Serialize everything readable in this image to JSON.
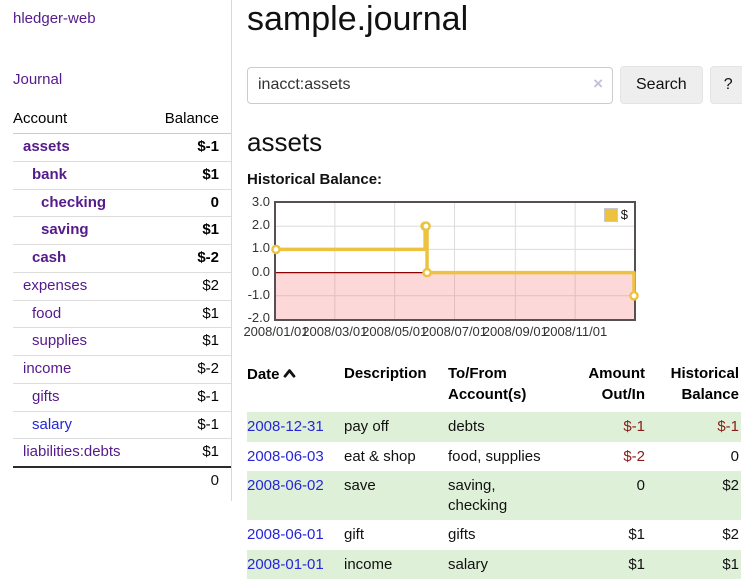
{
  "brand": "hledger-web",
  "sidebar": {
    "journal_link": "Journal",
    "accounts_table": {
      "headers": {
        "account": "Account",
        "balance": "Balance"
      },
      "rows": [
        {
          "name": "assets",
          "depth": 1,
          "balance": "$-1",
          "bold": true,
          "balance_style": "neg"
        },
        {
          "name": "bank",
          "depth": 2,
          "balance": "$1",
          "bold": true,
          "balance_style": ""
        },
        {
          "name": "checking",
          "depth": 3,
          "balance": "0",
          "bold": true,
          "balance_style": ""
        },
        {
          "name": "saving",
          "depth": 3,
          "balance": "$1",
          "bold": true,
          "balance_style": ""
        },
        {
          "name": "cash",
          "depth": 2,
          "balance": "$-2",
          "bold": true,
          "balance_style": "neg"
        },
        {
          "name": "expenses",
          "depth": 1,
          "balance": "$2",
          "bold": false,
          "balance_style": ""
        },
        {
          "name": "food",
          "depth": 2,
          "balance": "$1",
          "bold": false,
          "balance_style": ""
        },
        {
          "name": "supplies",
          "depth": 2,
          "balance": "$1",
          "bold": false,
          "balance_style": ""
        },
        {
          "name": "income",
          "depth": 1,
          "balance": "$-2",
          "bold": false,
          "balance_style": "neg-light"
        },
        {
          "name": "gifts",
          "depth": 2,
          "balance": "$-1",
          "bold": false,
          "balance_style": "neg-light"
        },
        {
          "name": "salary",
          "depth": 2,
          "balance": "$-1",
          "bold": false,
          "balance_style": "neg-light",
          "link_style": "blue"
        },
        {
          "name": "liabilities:debts",
          "depth": 1,
          "balance": "$1",
          "bold": false,
          "balance_style": ""
        }
      ],
      "total": "0"
    }
  },
  "header": {
    "title": "sample.journal"
  },
  "search": {
    "value": "inacct:assets",
    "clear_icon": "×",
    "button_label": "Search",
    "help_label": "?"
  },
  "account_page": {
    "title": "assets",
    "chart_label": "Historical Balance:"
  },
  "chart_data": {
    "type": "line",
    "step": true,
    "title": "Historical Balance:",
    "series": [
      {
        "name": "$",
        "color": "#EDC240",
        "points": [
          {
            "date": "2008-01-01",
            "day": 0,
            "value": 1
          },
          {
            "date": "2008-06-01",
            "day": 152,
            "value": 2
          },
          {
            "date": "2008-06-02",
            "day": 153,
            "value": 2
          },
          {
            "date": "2008-06-03",
            "day": 154,
            "value": 0
          },
          {
            "date": "2008-12-31",
            "day": 365,
            "value": -1
          }
        ]
      }
    ],
    "xlim": [
      0,
      365
    ],
    "ylim": [
      -2,
      3
    ],
    "xticks": [
      {
        "day": 0,
        "label": "2008/01/01"
      },
      {
        "day": 60,
        "label": "2008/03/01"
      },
      {
        "day": 121,
        "label": "2008/05/01"
      },
      {
        "day": 182,
        "label": "2008/07/01"
      },
      {
        "day": 244,
        "label": "2008/09/01"
      },
      {
        "day": 305,
        "label": "2008/11/01"
      }
    ],
    "yticks": [
      3.0,
      2.0,
      1.0,
      0.0,
      -1.0,
      -2.0
    ],
    "legend": {
      "label": "$",
      "position": "top-right"
    },
    "grid": true,
    "negative_region": true,
    "colors": {
      "gridline": "#dcdcdc",
      "zero_line": "#8b0000",
      "negative_fill": "rgba(245,110,110,0.27)",
      "border": "#565052"
    }
  },
  "register_table": {
    "headers": {
      "date": "Date",
      "description": "Description",
      "accounts_l1": "To/From",
      "accounts_l2": "Account(s)",
      "amount_l1": "Amount",
      "amount_l2": "Out/In",
      "balance_l1": "Historical",
      "balance_l2": "Balance"
    },
    "rows": [
      {
        "date": "2008-12-31",
        "description": "pay off",
        "accounts": "debts",
        "amount": "$-1",
        "balance": "$-1"
      },
      {
        "date": "2008-06-03",
        "description": "eat & shop",
        "accounts": "food, supplies",
        "amount": "$-2",
        "balance": "0"
      },
      {
        "date": "2008-06-02",
        "description": "save",
        "accounts": "saving, checking",
        "amount": "0",
        "balance": "$2"
      },
      {
        "date": "2008-06-01",
        "description": "gift",
        "accounts": "gifts",
        "amount": "$1",
        "balance": "$2"
      },
      {
        "date": "2008-01-01",
        "description": "income",
        "accounts": "salary",
        "amount": "$1",
        "balance": "$1"
      }
    ]
  }
}
